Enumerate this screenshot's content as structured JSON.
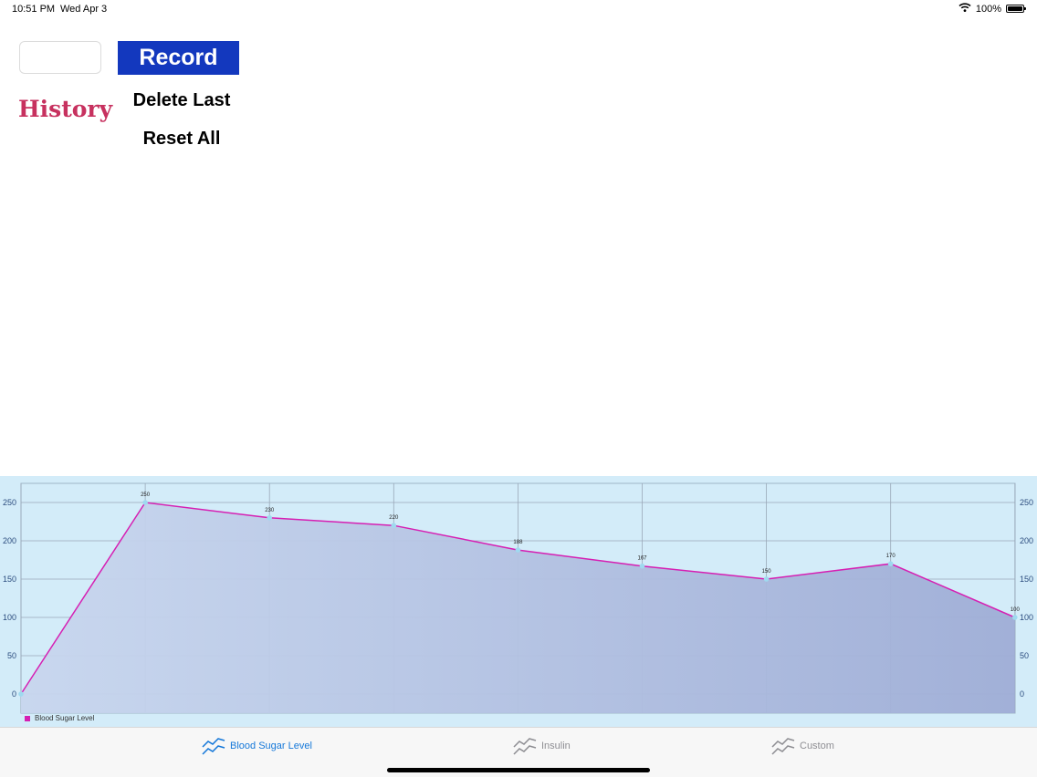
{
  "status_bar": {
    "time": "10:51 PM",
    "date": "Wed Apr 3",
    "battery": "100%",
    "battery_level": 1.0
  },
  "controls": {
    "input_value": "",
    "record_label": "Record",
    "history_label": "History",
    "delete_last_label": "Delete Last",
    "reset_all_label": "Reset All"
  },
  "colors": {
    "record_bg": "#1338be",
    "history_text": "#c7315f",
    "chart_bg": "#d3ecf9",
    "series_line": "#d61fb3",
    "active_tab": "#1578d9",
    "inactive_tab": "#8e8e93"
  },
  "chart_data": {
    "type": "area",
    "x": [
      1,
      2,
      3,
      4,
      5,
      6,
      7,
      8,
      9
    ],
    "series": [
      {
        "name": "Blood Sugar Level",
        "values": [
          0,
          250,
          230,
          220,
          188,
          167,
          150,
          170,
          100
        ]
      }
    ],
    "data_labels": [
      "",
      "250",
      "230",
      "220",
      "188",
      "167",
      "150",
      "170",
      "100"
    ],
    "ylim": [
      -25,
      275
    ],
    "yticks": [
      0,
      50,
      100,
      150,
      200,
      250
    ],
    "ytick_labels": [
      "0",
      "50",
      "100",
      "150",
      "200",
      "250"
    ],
    "y_axes": "left-and-right",
    "grid": true,
    "legend": "bottom-left",
    "title": "",
    "xlabel": "",
    "ylabel": ""
  },
  "legend": {
    "label": "Blood Sugar Level"
  },
  "tabs": [
    {
      "label": "Blood Sugar Level",
      "icon": "line-chart-icon",
      "active": true
    },
    {
      "label": "Insulin",
      "icon": "line-chart-icon",
      "active": false
    },
    {
      "label": "Custom",
      "icon": "line-chart-icon",
      "active": false
    }
  ]
}
